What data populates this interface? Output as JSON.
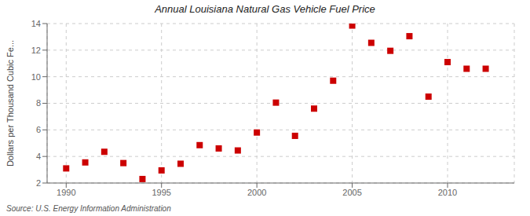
{
  "chart_data": {
    "type": "scatter",
    "title": "Annual Louisiana Natural Gas Vehicle Fuel Price",
    "ylabel": "Dollars per Thousand Cubic Fe...",
    "annotations": [
      "Source: U.S. Energy Information Administration"
    ],
    "x": [
      1990,
      1991,
      1992,
      1993,
      1994,
      1995,
      1996,
      1997,
      1998,
      1999,
      2000,
      2001,
      2002,
      2003,
      2004,
      2005,
      2006,
      2007,
      2008,
      2009,
      2010,
      2011,
      2012
    ],
    "values": [
      3.1,
      3.55,
      4.35,
      3.5,
      2.3,
      2.95,
      3.45,
      4.85,
      4.6,
      4.45,
      5.8,
      8.05,
      5.55,
      7.6,
      9.7,
      13.85,
      12.55,
      11.95,
      13.05,
      8.5,
      11.1,
      10.6,
      10.6
    ],
    "color": "#cc0000",
    "marker": "square",
    "xlim": [
      1989,
      2013.5
    ],
    "ylim": [
      2,
      14
    ],
    "xticks": [
      1990,
      1995,
      2000,
      2005,
      2010
    ],
    "yticks": [
      2,
      4,
      6,
      8,
      10,
      12,
      14
    ],
    "grid": true
  }
}
